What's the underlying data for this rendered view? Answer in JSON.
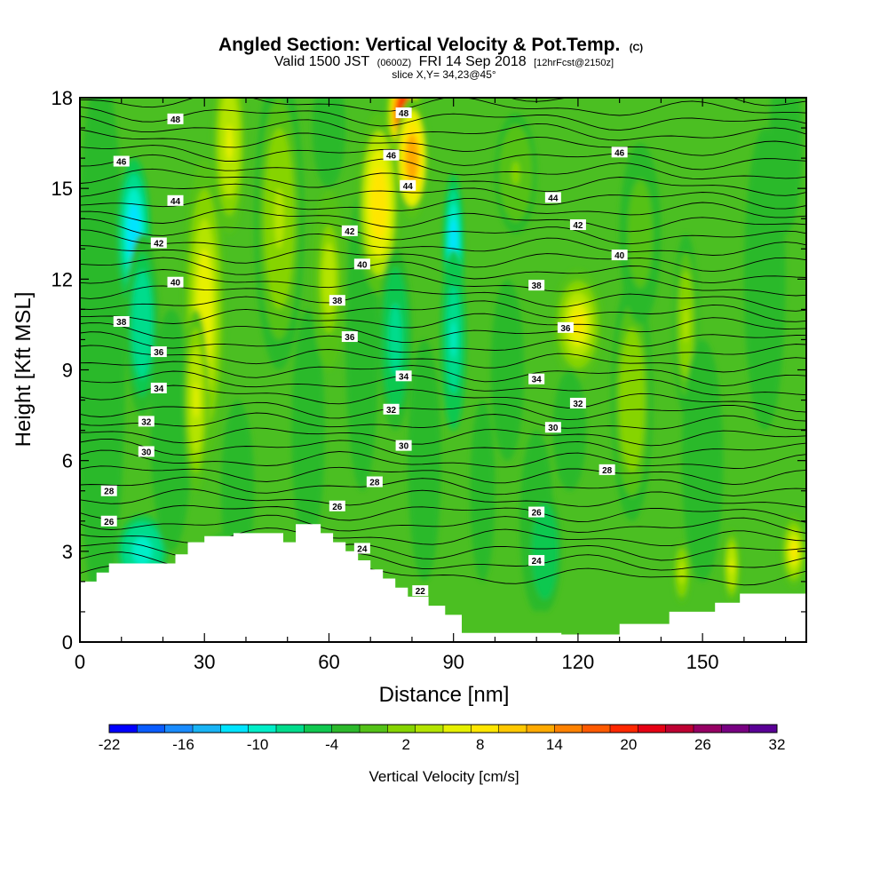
{
  "chart_data": {
    "type": "heatmap",
    "title": "Angled Section: Vertical Velocity & Pot.Temp.",
    "title_unit": "(C)",
    "subtitle_valid": "Valid 1500 JST",
    "subtitle_utc": "(0600Z)",
    "subtitle_date": "FRI 14 Sep 2018",
    "subtitle_fcst": "[12hrFcst@2150z]",
    "slice_info": "slice X,Y= 34,23@45°",
    "xlabel": "Distance [nm]",
    "ylabel": "Height [Kft MSL]",
    "xlim": [
      0,
      175
    ],
    "ylim": [
      0,
      18
    ],
    "x_ticks": [
      "0",
      "30",
      "60",
      "90",
      "120",
      "150"
    ],
    "x_tick_values": [
      0,
      30,
      60,
      90,
      120,
      150
    ],
    "y_ticks": [
      "0",
      "3",
      "6",
      "9",
      "12",
      "15",
      "18"
    ],
    "y_tick_values": [
      0,
      3,
      6,
      9,
      12,
      15,
      18
    ],
    "colorbar": {
      "title": "Vertical Velocity [cm/s]",
      "labels": [
        "-22",
        "-16",
        "-10",
        "-4",
        "2",
        "8",
        "14",
        "20",
        "26",
        "32"
      ],
      "min": -22,
      "max": 32,
      "colors": [
        "#0000ff",
        "#0a5cff",
        "#1a8cff",
        "#19b4f5",
        "#00e4ff",
        "#00eec8",
        "#00dc8c",
        "#10c850",
        "#2cb92c",
        "#54c218",
        "#86d400",
        "#b4e400",
        "#e6f000",
        "#ffe600",
        "#ffc800",
        "#ffaa00",
        "#ff8200",
        "#ff5a00",
        "#ff2800",
        "#e60014",
        "#be0032",
        "#960064",
        "#780082",
        "#5a0096"
      ]
    },
    "terrain": [
      [
        0,
        2
      ],
      [
        4,
        2
      ],
      [
        4,
        2.3
      ],
      [
        7,
        2.3
      ],
      [
        7,
        2.6
      ],
      [
        23,
        2.6
      ],
      [
        23,
        2.9
      ],
      [
        26,
        2.9
      ],
      [
        26,
        3.3
      ],
      [
        30,
        3.3
      ],
      [
        30,
        3.5
      ],
      [
        37,
        3.5
      ],
      [
        37,
        3.6
      ],
      [
        49,
        3.6
      ],
      [
        49,
        3.3
      ],
      [
        52,
        3.3
      ],
      [
        52,
        3.9
      ],
      [
        58,
        3.9
      ],
      [
        58,
        3.6
      ],
      [
        61,
        3.6
      ],
      [
        61,
        3.3
      ],
      [
        64,
        3.3
      ],
      [
        64,
        3.0
      ],
      [
        67,
        3.0
      ],
      [
        67,
        2.7
      ],
      [
        70,
        2.7
      ],
      [
        70,
        2.4
      ],
      [
        73,
        2.4
      ],
      [
        73,
        2.1
      ],
      [
        76,
        2.1
      ],
      [
        76,
        1.8
      ],
      [
        79,
        1.8
      ],
      [
        79,
        1.5
      ],
      [
        84,
        1.5
      ],
      [
        84,
        1.2
      ],
      [
        88,
        1.2
      ],
      [
        88,
        0.9
      ],
      [
        92,
        0.9
      ],
      [
        92,
        0.3
      ],
      [
        116,
        0.3
      ],
      [
        116,
        0.25
      ],
      [
        130,
        0.25
      ],
      [
        130,
        0.6
      ],
      [
        142,
        0.6
      ],
      [
        142,
        1.0
      ],
      [
        153,
        1.0
      ],
      [
        153,
        1.3
      ],
      [
        159,
        1.3
      ],
      [
        159,
        1.6
      ],
      [
        175,
        1.6
      ]
    ],
    "velocity_cells": [
      {
        "x": 5,
        "y": 10,
        "v": -3,
        "sx": 6,
        "sy": 9
      },
      {
        "x": 13,
        "y": 13.5,
        "v": -12,
        "sx": 4,
        "sy": 2.5
      },
      {
        "x": 15,
        "y": 10.5,
        "v": -8,
        "sx": 4,
        "sy": 3
      },
      {
        "x": 15,
        "y": 3,
        "v": -10,
        "sx": 6,
        "sy": 1.2
      },
      {
        "x": 22,
        "y": 7,
        "v": -2,
        "sx": 5,
        "sy": 4
      },
      {
        "x": 30,
        "y": 11,
        "v": 7,
        "sx": 5,
        "sy": 5
      },
      {
        "x": 28,
        "y": 8,
        "v": 6,
        "sx": 3,
        "sy": 3
      },
      {
        "x": 36,
        "y": 16.5,
        "v": 6,
        "sx": 4,
        "sy": 3
      },
      {
        "x": 38,
        "y": 5,
        "v": -4,
        "sx": 4,
        "sy": 3
      },
      {
        "x": 48,
        "y": 14,
        "v": 3,
        "sx": 6,
        "sy": 5
      },
      {
        "x": 55,
        "y": 7,
        "v": -3,
        "sx": 4,
        "sy": 4
      },
      {
        "x": 60,
        "y": 12,
        "v": 4,
        "sx": 4,
        "sy": 3
      },
      {
        "x": 68,
        "y": 10,
        "v": -4,
        "sx": 4,
        "sy": 5
      },
      {
        "x": 72,
        "y": 14.5,
        "v": 9,
        "sx": 5,
        "sy": 3
      },
      {
        "x": 78,
        "y": 17.5,
        "v": 22,
        "sx": 4,
        "sy": 1.5
      },
      {
        "x": 80,
        "y": 16,
        "v": 14,
        "sx": 4,
        "sy": 2
      },
      {
        "x": 76,
        "y": 10,
        "v": -7,
        "sx": 4,
        "sy": 3
      },
      {
        "x": 83,
        "y": 6,
        "v": -4,
        "sx": 4,
        "sy": 4
      },
      {
        "x": 90,
        "y": 13,
        "v": -13,
        "sx": 2.5,
        "sy": 2.5
      },
      {
        "x": 90,
        "y": 10,
        "v": -9,
        "sx": 3,
        "sy": 3
      },
      {
        "x": 97,
        "y": 5,
        "v": -4,
        "sx": 3,
        "sy": 3
      },
      {
        "x": 103,
        "y": 9,
        "v": -2,
        "sx": 4,
        "sy": 3
      },
      {
        "x": 110,
        "y": 4,
        "v": -3,
        "sx": 4,
        "sy": 3
      },
      {
        "x": 120,
        "y": 10.5,
        "v": 8,
        "sx": 6,
        "sy": 1.8
      },
      {
        "x": 112,
        "y": 3,
        "v": -6,
        "sx": 4,
        "sy": 2
      },
      {
        "x": 118,
        "y": 7,
        "v": -3,
        "sx": 4,
        "sy": 2
      },
      {
        "x": 133,
        "y": 8,
        "v": 2,
        "sx": 5,
        "sy": 4
      },
      {
        "x": 135,
        "y": 13.5,
        "v": -1,
        "sx": 5,
        "sy": 3
      },
      {
        "x": 146,
        "y": 10.5,
        "v": 3,
        "sx": 3,
        "sy": 3
      },
      {
        "x": 150,
        "y": 6,
        "v": -3,
        "sx": 5,
        "sy": 4
      },
      {
        "x": 157,
        "y": 2.5,
        "v": 6,
        "sx": 2,
        "sy": 1.2
      },
      {
        "x": 145,
        "y": 2.3,
        "v": 5,
        "sx": 2,
        "sy": 1
      },
      {
        "x": 172,
        "y": 3,
        "v": 8,
        "sx": 3,
        "sy": 1.2
      },
      {
        "x": 165,
        "y": 12,
        "v": -4,
        "sx": 5,
        "sy": 5
      },
      {
        "x": 170,
        "y": 16.5,
        "v": -3,
        "sx": 4,
        "sy": 3
      },
      {
        "x": 105,
        "y": 15.5,
        "v": 1,
        "sx": 5,
        "sy": 2
      },
      {
        "x": 60,
        "y": 17,
        "v": -2,
        "sx": 4,
        "sy": 2
      },
      {
        "x": 35,
        "y": 2.8,
        "v": 0,
        "sx": 5,
        "sy": 0.8
      }
    ],
    "contour_labels": [
      {
        "text": "48",
        "x": 23,
        "y": 17.3
      },
      {
        "text": "48",
        "x": 78,
        "y": 17.5
      },
      {
        "text": "46",
        "x": 10,
        "y": 15.9
      },
      {
        "text": "46",
        "x": 75,
        "y": 16.1
      },
      {
        "text": "46",
        "x": 130,
        "y": 16.2
      },
      {
        "text": "44",
        "x": 23,
        "y": 14.6
      },
      {
        "text": "44",
        "x": 79,
        "y": 15.1
      },
      {
        "text": "44",
        "x": 114,
        "y": 14.7
      },
      {
        "text": "42",
        "x": 19,
        "y": 13.2
      },
      {
        "text": "42",
        "x": 65,
        "y": 13.6
      },
      {
        "text": "42",
        "x": 120,
        "y": 13.8
      },
      {
        "text": "40",
        "x": 23,
        "y": 11.9
      },
      {
        "text": "40",
        "x": 68,
        "y": 12.5
      },
      {
        "text": "40",
        "x": 130,
        "y": 12.8
      },
      {
        "text": "38",
        "x": 10,
        "y": 10.6
      },
      {
        "text": "38",
        "x": 62,
        "y": 11.3
      },
      {
        "text": "38",
        "x": 110,
        "y": 11.8
      },
      {
        "text": "36",
        "x": 19,
        "y": 9.6
      },
      {
        "text": "36",
        "x": 65,
        "y": 10.1
      },
      {
        "text": "36",
        "x": 117,
        "y": 10.4
      },
      {
        "text": "34",
        "x": 19,
        "y": 8.4
      },
      {
        "text": "34",
        "x": 78,
        "y": 8.8
      },
      {
        "text": "34",
        "x": 110,
        "y": 8.7
      },
      {
        "text": "32",
        "x": 16,
        "y": 7.3
      },
      {
        "text": "32",
        "x": 75,
        "y": 7.7
      },
      {
        "text": "32",
        "x": 120,
        "y": 7.9
      },
      {
        "text": "30",
        "x": 16,
        "y": 6.3
      },
      {
        "text": "30",
        "x": 78,
        "y": 6.5
      },
      {
        "text": "30",
        "x": 114,
        "y": 7.1
      },
      {
        "text": "28",
        "x": 7,
        "y": 5
      },
      {
        "text": "28",
        "x": 71,
        "y": 5.3
      },
      {
        "text": "28",
        "x": 127,
        "y": 5.7
      },
      {
        "text": "26",
        "x": 7,
        "y": 4
      },
      {
        "text": "26",
        "x": 62,
        "y": 4.5
      },
      {
        "text": "26",
        "x": 110,
        "y": 4.3
      },
      {
        "text": "24",
        "x": 68,
        "y": 3.1
      },
      {
        "text": "24",
        "x": 110,
        "y": 2.7
      },
      {
        "text": "22",
        "x": 82,
        "y": 1.7
      }
    ]
  }
}
